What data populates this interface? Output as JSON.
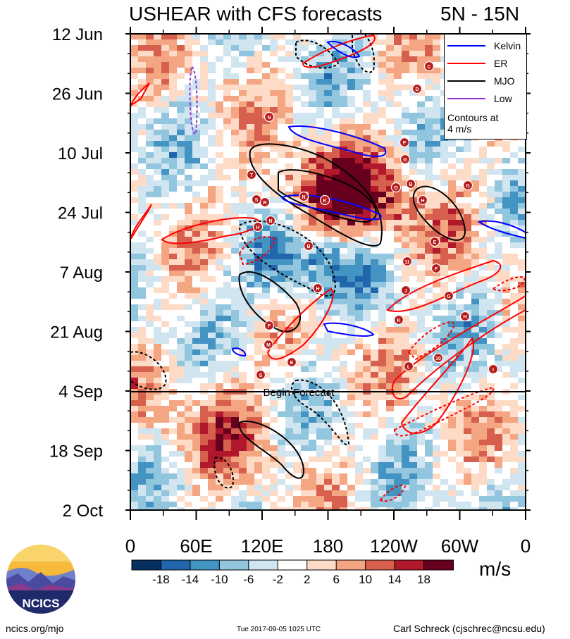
{
  "header": {
    "title": "USHEAR with CFS forecasts",
    "region": "5N - 15N"
  },
  "chart_data": {
    "type": "heatmap",
    "title": "USHEAR with CFS forecasts",
    "subtitle": "5N - 15N",
    "x_ticks": [
      "0",
      "60E",
      "120E",
      "180",
      "120W",
      "60W",
      "0"
    ],
    "y_ticks": [
      "12 Jun",
      "26 Jun",
      "10 Jul",
      "24 Jul",
      "7 Aug",
      "21 Aug",
      "4 Sep",
      "18 Sep",
      "2 Oct"
    ],
    "forecast_line": {
      "date": "4 Sep",
      "label": "Begin Forecast"
    },
    "colorbar": {
      "labels": [
        "-18",
        "-14",
        "-10",
        "-6",
        "-2",
        "2",
        "6",
        "10",
        "14",
        "18"
      ],
      "colors": [
        "#053061",
        "#2166ac",
        "#4393c3",
        "#92c5de",
        "#d1e5f0",
        "#ffffff",
        "#fddbc7",
        "#f4a582",
        "#d6604d",
        "#b2182b",
        "#67001f"
      ],
      "units": "m/s"
    },
    "legend": [
      {
        "name": "Kelvin",
        "color": "#0000ff"
      },
      {
        "name": "ER",
        "color": "#ff0000"
      },
      {
        "name": "MJO",
        "color": "#000000"
      },
      {
        "name": "Low",
        "color": "#9932cc"
      }
    ],
    "contour_note": [
      "Contours at",
      "4 m/s"
    ],
    "storm_markers": [
      "N",
      "T",
      "S",
      "R",
      "K",
      "N",
      "H",
      "N",
      "B",
      "H",
      "F",
      "M",
      "S",
      "E",
      "F",
      "G",
      "D",
      "B",
      "G",
      "H",
      "E",
      "11",
      "F",
      "J",
      "G",
      "K",
      "H",
      "L",
      "10",
      "I",
      "C",
      "D"
    ]
  },
  "logo": {
    "text": "NCICS"
  },
  "footer": {
    "left": "ncics.org/mjo",
    "middle": "Tue 2017-09-05 1025 UTC",
    "right": "Carl Schreck (cjschrec@ncsu.edu)"
  }
}
